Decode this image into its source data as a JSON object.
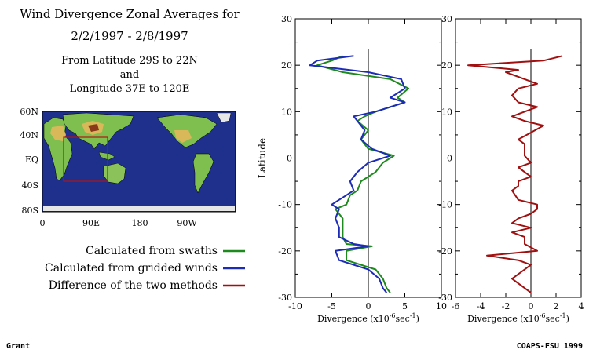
{
  "header": {
    "title_line1": "Wind Divergence Zonal Averages for",
    "title_line2": "2/2/1997 - 2/8/1997",
    "sub_line1": "From Latitude 29S to 22N",
    "sub_line2": "and",
    "sub_line3": "Longitude 37E to 120E"
  },
  "map": {
    "lat_labels": [
      "60N",
      "40N",
      "EQ",
      "40S",
      "80S"
    ],
    "lon_labels": [
      "0",
      "90E",
      "180",
      "90W"
    ],
    "ocean_color": "#1e2f8c",
    "box_color": "#b01818"
  },
  "legend": [
    {
      "label": "Calculated from swaths",
      "color": "#1e8a1e"
    },
    {
      "label": "Calculated from gridded winds",
      "color": "#1c2bb8"
    },
    {
      "label": "Difference of the two methods",
      "color": "#a01010"
    }
  ],
  "footer": {
    "left": "Grant",
    "right": "COAPS-FSU 1999"
  },
  "chart_data": [
    {
      "type": "line",
      "ylabel": "Latitude",
      "xlabel_main": "Divergence (x10",
      "xlabel_exp": "-6",
      "xlabel_unit": "sec",
      "xlabel_exp2": "-1",
      "xlabel_close": ")",
      "xlim": [
        -10,
        10
      ],
      "ylim": [
        -30,
        30
      ],
      "xticks": [
        "-10",
        "-5",
        "0",
        "5",
        "10"
      ],
      "yticks": [
        "-30",
        "-20",
        "-10",
        "0",
        "10",
        "20",
        "30"
      ],
      "series": [
        {
          "color": "#1e8a1e",
          "lat": [
            22,
            21,
            20,
            18.5,
            17,
            15,
            13,
            12,
            10,
            9,
            8,
            6,
            4,
            2,
            0.5,
            -1,
            -3,
            -5,
            -7,
            -8,
            -10,
            -11,
            -13,
            -15,
            -17,
            -18.5,
            -19,
            -20,
            -22,
            -24,
            -26,
            -28,
            -29
          ],
          "x": [
            -3.5,
            -5,
            -7,
            -3.5,
            3,
            5.5,
            4,
            5,
            1,
            -0.5,
            -1.5,
            0,
            -1,
            0,
            3.5,
            2,
            1,
            -1,
            -1.5,
            -2.5,
            -3,
            -4.5,
            -3.5,
            -3.5,
            -3.5,
            -3,
            0.5,
            -3,
            -3,
            1,
            2,
            2.5,
            3
          ]
        },
        {
          "color": "#1c2bb8",
          "lat": [
            22,
            21,
            20,
            18.5,
            17,
            15,
            13,
            12,
            10,
            9,
            8,
            6,
            4,
            2,
            0.5,
            -1,
            -3,
            -5,
            -7,
            -8,
            -10,
            -11,
            -13,
            -15,
            -17,
            -18.5,
            -19,
            -20,
            -22,
            -24,
            -26,
            -28,
            -29
          ],
          "x": [
            -2,
            -7,
            -8,
            0,
            4.5,
            5,
            3,
            5,
            1,
            -2,
            -1.5,
            -0.5,
            -1,
            0.5,
            3,
            0,
            -1.5,
            -2.5,
            -2,
            -3,
            -5,
            -4,
            -4.5,
            -4,
            -4,
            -2,
            0,
            -4.5,
            -4,
            0,
            1.5,
            2,
            2.5
          ]
        }
      ]
    },
    {
      "type": "line",
      "xlabel_main": "Divergence (x10",
      "xlabel_exp": "-6",
      "xlabel_unit": "sec",
      "xlabel_exp2": "-1",
      "xlabel_close": ")",
      "xlim": [
        -6,
        4
      ],
      "ylim": [
        -30,
        30
      ],
      "xticks": [
        "-6",
        "-4",
        "-2",
        "0",
        "2",
        "4"
      ],
      "yticks": [
        "-30",
        "-20",
        "-10",
        "0",
        "10",
        "20",
        "30"
      ],
      "series": [
        {
          "color": "#a01010",
          "lat": [
            22,
            21,
            20,
            19,
            18.5,
            17,
            16,
            15,
            13.5,
            12,
            11,
            9,
            8,
            7,
            5.5,
            4,
            3,
            2,
            0.5,
            -1,
            -2,
            -3,
            -4,
            -5,
            -6,
            -7,
            -9,
            -10,
            -11,
            -12,
            -13,
            -14,
            -15,
            -16,
            -17,
            -18.5,
            -20,
            -21,
            -22,
            -23,
            -24,
            -26,
            -28,
            -29
          ],
          "x": [
            2.5,
            1,
            -5,
            -1,
            -2,
            -0.5,
            0.5,
            -1,
            -1.5,
            -1,
            0.5,
            -1.5,
            -0.5,
            1,
            0,
            -1,
            -0.5,
            -0.5,
            -0.5,
            0,
            -1,
            -0.5,
            0,
            -1,
            -1,
            -1.5,
            -1,
            0.5,
            0.5,
            0,
            -1,
            -1.5,
            0,
            -1.5,
            -0.5,
            -0.5,
            0.5,
            -3.5,
            -1,
            0,
            -0.5,
            -1.5,
            -0.5,
            0
          ]
        }
      ]
    }
  ]
}
